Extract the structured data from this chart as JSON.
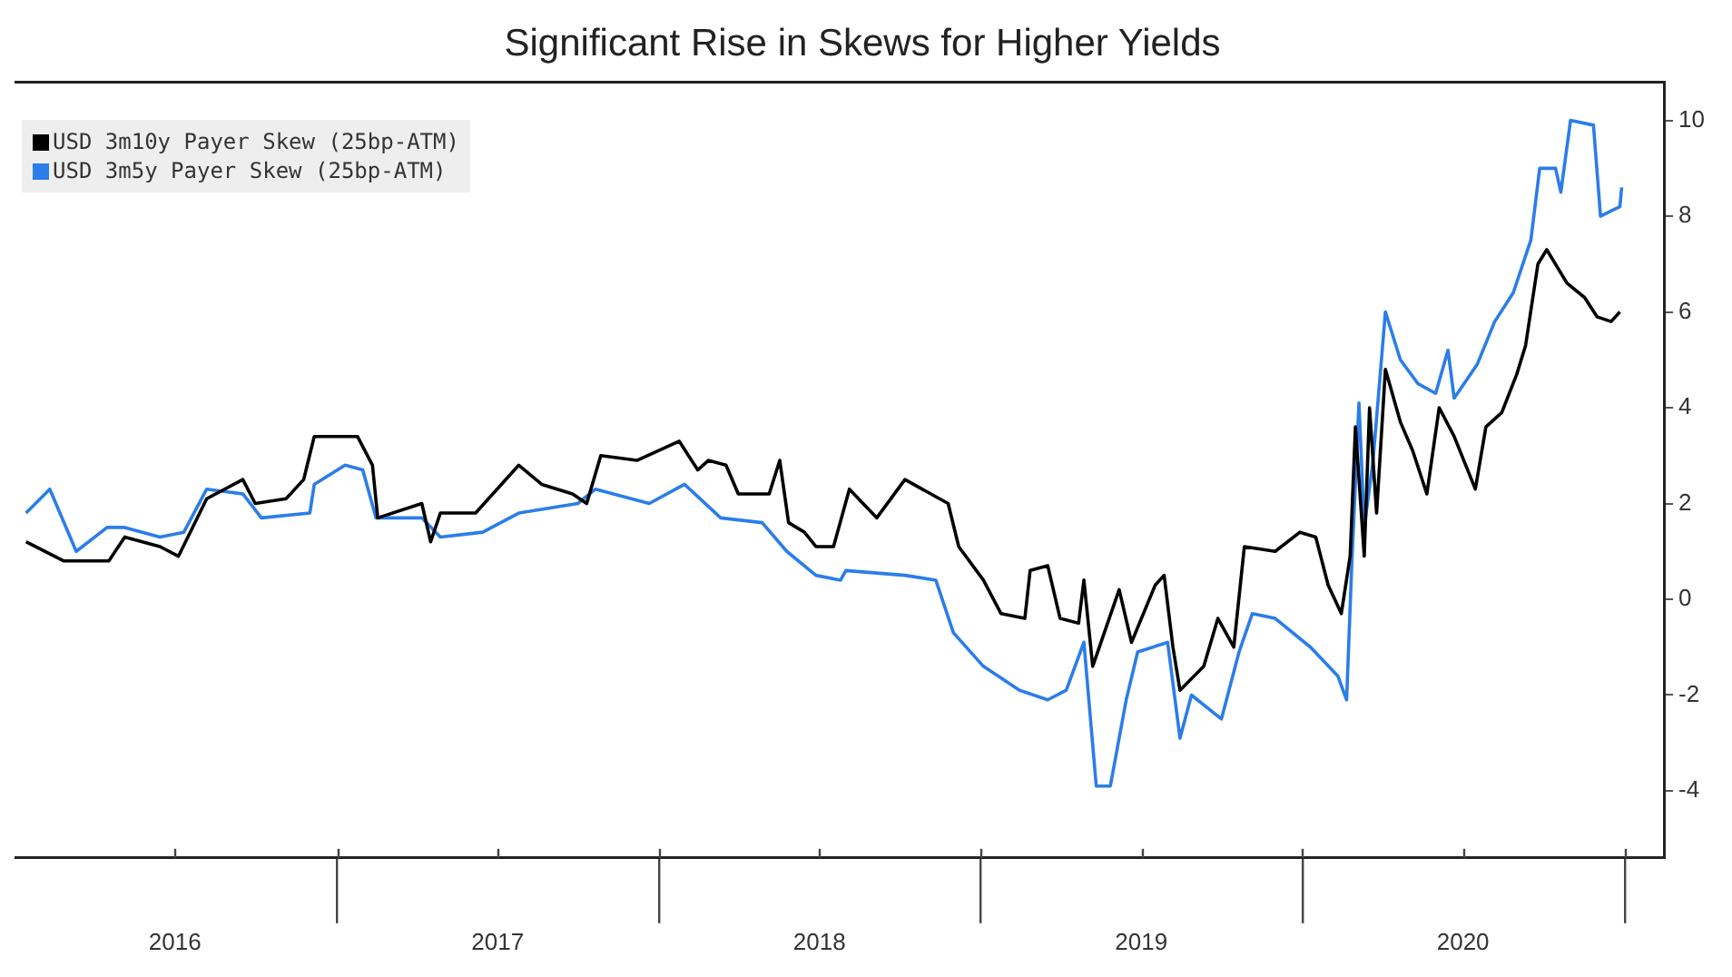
{
  "chart_data": {
    "type": "line",
    "title": "Significant Rise in Skews for Higher Yields",
    "xlim": [
      "2016-01-01",
      "2021-02-14"
    ],
    "xticks": [
      {
        "value": "2016-07-01",
        "label": "2016"
      },
      {
        "value": "2017-01-01",
        "label": null
      },
      {
        "value": "2017-07-02",
        "label": "2017"
      },
      {
        "value": "2018-01-01",
        "label": null
      },
      {
        "value": "2018-07-02",
        "label": "2018"
      },
      {
        "value": "2019-01-01",
        "label": null
      },
      {
        "value": "2019-07-02",
        "label": "2019"
      },
      {
        "value": "2020-01-01",
        "label": null
      },
      {
        "value": "2020-07-01",
        "label": "2020"
      },
      {
        "value": "2021-01-01",
        "label": null
      }
    ],
    "ylim": [
      -5.4,
      10.8
    ],
    "yticks": [
      -4,
      -2,
      0,
      2,
      4,
      6,
      8,
      10
    ],
    "grid": false,
    "legend": "top left",
    "marker": "none",
    "line_style": "solid",
    "series": [
      {
        "name": "USD 3m10y Payer Skew (25bp-ATM)",
        "color": "#000000",
        "x": [
          "2016-01-14",
          "2016-02-26",
          "2016-04-17",
          "2016-05-05",
          "2016-06-14",
          "2016-07-05",
          "2016-08-06",
          "2016-09-16",
          "2016-09-30",
          "2016-11-04",
          "2016-11-24",
          "2016-12-06",
          "2017-01-24",
          "2017-02-10",
          "2017-02-16",
          "2017-04-07",
          "2017-04-17",
          "2017-04-28",
          "2017-06-07",
          "2017-07-26",
          "2017-08-21",
          "2017-09-25",
          "2017-10-11",
          "2017-10-27",
          "2017-12-07",
          "2018-01-24",
          "2018-02-14",
          "2018-02-26",
          "2018-03-18",
          "2018-04-01",
          "2018-05-06",
          "2018-05-18",
          "2018-05-28",
          "2018-06-15",
          "2018-06-28",
          "2018-07-18",
          "2018-08-05",
          "2018-09-05",
          "2018-10-07",
          "2018-11-25",
          "2018-12-07",
          "2019-01-04",
          "2019-01-24",
          "2019-02-20",
          "2019-02-26",
          "2019-03-18",
          "2019-04-01",
          "2019-04-22",
          "2019-04-28",
          "2019-05-08",
          "2019-06-07",
          "2019-06-21",
          "2019-07-18",
          "2019-07-28",
          "2019-08-07",
          "2019-08-15",
          "2019-09-11",
          "2019-09-27",
          "2019-10-15",
          "2019-10-27",
          "2019-12-01",
          "2019-12-29",
          "2020-01-16",
          "2020-01-30",
          "2020-02-14",
          "2020-02-24",
          "2020-03-01",
          "2020-03-11",
          "2020-03-17",
          "2020-03-25",
          "2020-04-04",
          "2020-04-21",
          "2020-05-05",
          "2020-05-21",
          "2020-06-04",
          "2020-06-21",
          "2020-07-15",
          "2020-07-27",
          "2020-08-14",
          "2020-08-31",
          "2020-09-10",
          "2020-09-24",
          "2020-10-04",
          "2020-10-27",
          "2020-11-16",
          "2020-11-30",
          "2020-12-16",
          "2020-12-26"
        ],
        "values": [
          1.2,
          0.8,
          0.8,
          1.3,
          1.1,
          0.9,
          2.1,
          2.5,
          2.0,
          2.1,
          2.5,
          3.4,
          3.4,
          2.8,
          1.7,
          2.0,
          1.2,
          1.8,
          1.8,
          2.8,
          2.4,
          2.2,
          2.0,
          3.0,
          2.9,
          3.3,
          2.7,
          2.9,
          2.8,
          2.2,
          2.2,
          2.9,
          1.6,
          1.4,
          1.1,
          1.1,
          2.3,
          1.7,
          2.5,
          2.0,
          1.1,
          0.4,
          -0.3,
          -0.4,
          0.6,
          0.7,
          -0.4,
          -0.5,
          0.4,
          -1.4,
          0.2,
          -0.9,
          0.3,
          0.5,
          -1.0,
          -1.9,
          -1.4,
          -0.4,
          -1.0,
          1.1,
          1.0,
          1.4,
          1.3,
          0.3,
          -0.3,
          0.9,
          3.6,
          0.9,
          4.0,
          1.8,
          4.8,
          3.7,
          3.1,
          2.2,
          4.0,
          3.4,
          2.3,
          3.6,
          3.9,
          4.7,
          5.3,
          7.0,
          7.3,
          6.6,
          6.3,
          5.9,
          5.8,
          6.0
        ]
      },
      {
        "name": "USD 3m5y Payer Skew (25bp-ATM)",
        "color": "#2b7de9",
        "x": [
          "2016-01-14",
          "2016-02-10",
          "2016-03-11",
          "2016-04-15",
          "2016-05-05",
          "2016-06-14",
          "2016-07-11",
          "2016-08-06",
          "2016-09-16",
          "2016-10-07",
          "2016-12-01",
          "2016-12-06",
          "2017-01-10",
          "2017-01-30",
          "2017-02-14",
          "2017-04-07",
          "2017-04-28",
          "2017-06-15",
          "2017-07-26",
          "2017-10-01",
          "2017-10-21",
          "2017-12-21",
          "2018-01-30",
          "2018-03-12",
          "2018-04-28",
          "2018-05-26",
          "2018-06-28",
          "2018-07-26",
          "2018-08-01",
          "2018-10-07",
          "2018-11-11",
          "2018-12-01",
          "2019-01-04",
          "2019-02-14",
          "2019-03-18",
          "2019-04-08",
          "2019-04-28",
          "2019-05-12",
          "2019-05-28",
          "2019-06-15",
          "2019-06-28",
          "2019-08-01",
          "2019-08-15",
          "2019-08-28",
          "2019-10-01",
          "2019-10-21",
          "2019-11-05",
          "2019-12-01",
          "2020-01-10",
          "2020-02-10",
          "2020-02-20",
          "2020-02-26",
          "2020-03-05",
          "2020-03-11",
          "2020-03-21",
          "2020-04-04",
          "2020-04-21",
          "2020-05-11",
          "2020-05-31",
          "2020-06-14",
          "2020-06-21",
          "2020-07-17",
          "2020-08-06",
          "2020-08-27",
          "2020-09-16",
          "2020-09-26",
          "2020-10-14",
          "2020-10-20",
          "2020-10-31",
          "2020-11-26",
          "2020-12-04",
          "2020-12-26",
          "2020-12-28"
        ],
        "values": [
          1.8,
          2.3,
          1.0,
          1.5,
          1.5,
          1.3,
          1.4,
          2.3,
          2.2,
          1.7,
          1.8,
          2.4,
          2.8,
          2.7,
          1.7,
          1.7,
          1.3,
          1.4,
          1.8,
          2.0,
          2.3,
          2.0,
          2.4,
          1.7,
          1.6,
          1.0,
          0.5,
          0.4,
          0.6,
          0.5,
          0.4,
          -0.7,
          -1.4,
          -1.9,
          -2.1,
          -1.9,
          -0.9,
          -3.9,
          -3.9,
          -2.1,
          -1.1,
          -0.9,
          -2.9,
          -2.0,
          -2.5,
          -1.1,
          -0.3,
          -0.4,
          -1.0,
          -1.6,
          -2.1,
          0.8,
          4.1,
          1.5,
          2.9,
          6.0,
          5.0,
          4.5,
          4.3,
          5.2,
          4.2,
          4.9,
          5.8,
          6.4,
          7.5,
          9.0,
          9.0,
          8.5,
          10.0,
          9.9,
          8.0,
          8.2,
          8.6
        ]
      }
    ]
  }
}
